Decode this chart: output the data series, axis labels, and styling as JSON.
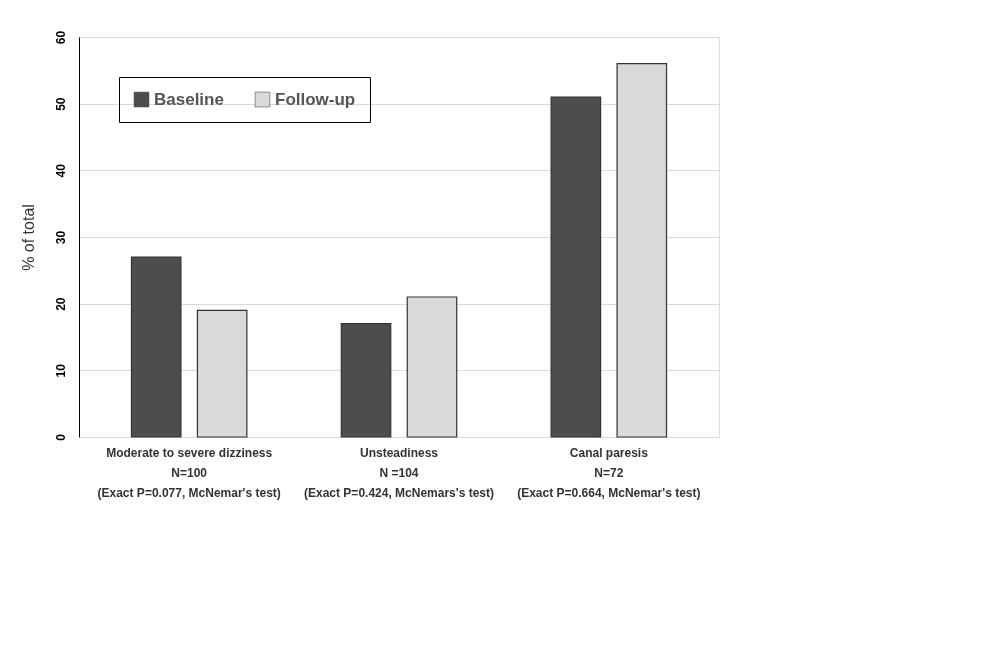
{
  "chart_data": {
    "type": "bar",
    "ylabel": "% of total",
    "categories": [
      "Moderate to severe dizziness\nN=100\n(Exact P=0.077, McNemar's test)",
      "Unsteadiness\nN =104\n(Exact P=0.424, McNemars's test)",
      "Canal paresis\nN=72\n(Exact P=0.664, McNemar's test)"
    ],
    "series": [
      {
        "name": "Baseline",
        "color": "#4d4d4d",
        "values": [
          27,
          17,
          51
        ]
      },
      {
        "name": "Follow-up",
        "color": "#d9d9d9",
        "values": [
          19,
          21,
          56
        ]
      }
    ],
    "ylim": [
      0,
      60
    ],
    "yticks": [
      0,
      10,
      20,
      30,
      40,
      50,
      60
    ],
    "grid": "y",
    "legend": "top left"
  }
}
